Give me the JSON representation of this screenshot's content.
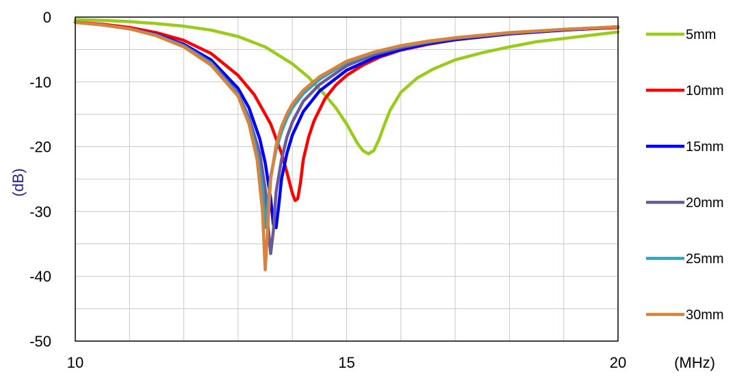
{
  "chart_data": {
    "type": "line",
    "title": "",
    "xlabel": "(MHz)",
    "ylabel": "(dB)",
    "xlim": [
      10,
      20
    ],
    "ylim": [
      -50,
      0
    ],
    "x_ticks": [
      10,
      15,
      20
    ],
    "y_ticks": [
      0,
      -10,
      -20,
      -30,
      -40,
      -50
    ],
    "x_tick_labels": [
      "10",
      "15",
      "20"
    ],
    "y_tick_labels": [
      "0",
      "-10",
      "-20",
      "-30",
      "-40",
      "-50"
    ],
    "grid": true,
    "legend_position": "right",
    "colors": {
      "ylabel": "#1f1f8f",
      "grid": "#c8c8c8",
      "axis": "#000000"
    },
    "series": [
      {
        "name": "5mm",
        "color": "#99cc1a",
        "x": [
          10,
          10.5,
          11,
          11.5,
          12,
          12.5,
          13,
          13.5,
          14,
          14.3,
          14.6,
          14.8,
          15,
          15.1,
          15.2,
          15.3,
          15.4,
          15.5,
          15.6,
          15.7,
          15.8,
          16,
          16.3,
          16.6,
          17,
          17.5,
          18,
          18.5,
          19,
          19.5,
          20
        ],
        "y": [
          -0.4,
          -0.5,
          -0.7,
          -1.0,
          -1.4,
          -2.0,
          -3.0,
          -4.6,
          -7.2,
          -9.3,
          -12.0,
          -14.0,
          -16.5,
          -18.0,
          -19.5,
          -20.6,
          -21.1,
          -20.6,
          -18.8,
          -16.5,
          -14.4,
          -11.6,
          -9.4,
          -8.0,
          -6.6,
          -5.5,
          -4.6,
          -3.8,
          -3.3,
          -2.8,
          -2.3
        ]
      },
      {
        "name": "10mm",
        "color": "#ff0000",
        "x": [
          10,
          10.5,
          11,
          11.5,
          12,
          12.5,
          13,
          13.3,
          13.6,
          13.8,
          13.9,
          14.0,
          14.05,
          14.1,
          14.15,
          14.2,
          14.3,
          14.4,
          14.6,
          14.8,
          15,
          15.3,
          15.6,
          16,
          16.5,
          17,
          17.5,
          18,
          18.5,
          19,
          19.5,
          20
        ],
        "y": [
          -0.8,
          -1.1,
          -1.6,
          -2.4,
          -3.6,
          -5.6,
          -9.0,
          -12.0,
          -16.5,
          -21.0,
          -24.0,
          -27.2,
          -28.3,
          -28.0,
          -25.5,
          -22.0,
          -18.5,
          -16.0,
          -12.6,
          -10.5,
          -9.0,
          -7.4,
          -6.2,
          -5.1,
          -4.2,
          -3.5,
          -3.0,
          -2.6,
          -2.3,
          -2.0,
          -1.8,
          -1.6
        ]
      },
      {
        "name": "15mm",
        "color": "#0000ff",
        "x": [
          10,
          10.5,
          11,
          11.5,
          12,
          12.5,
          13,
          13.2,
          13.4,
          13.5,
          13.6,
          13.65,
          13.7,
          13.75,
          13.8,
          13.9,
          14.0,
          14.2,
          14.5,
          15,
          15.5,
          16,
          16.5,
          17,
          18,
          19,
          20
        ],
        "y": [
          -0.8,
          -1.2,
          -1.8,
          -2.7,
          -4.2,
          -6.6,
          -11.0,
          -14.0,
          -18.8,
          -22.5,
          -28.0,
          -32.0,
          -32.5,
          -29.0,
          -25.0,
          -21.0,
          -18.2,
          -14.6,
          -11.4,
          -8.2,
          -6.3,
          -5.0,
          -4.1,
          -3.5,
          -2.6,
          -2.0,
          -1.5
        ]
      },
      {
        "name": "20mm",
        "color": "#6b5b95",
        "x": [
          10,
          10.5,
          11,
          11.5,
          12,
          12.5,
          13,
          13.2,
          13.4,
          13.5,
          13.55,
          13.6,
          13.65,
          13.7,
          13.8,
          13.9,
          14.0,
          14.2,
          14.5,
          15,
          15.5,
          16,
          16.5,
          17,
          18,
          19,
          20
        ],
        "y": [
          -0.8,
          -1.2,
          -1.8,
          -2.8,
          -4.4,
          -7.0,
          -11.8,
          -15.5,
          -21.0,
          -26.5,
          -32.0,
          -36.5,
          -33.0,
          -27.0,
          -22.0,
          -18.5,
          -16.2,
          -13.0,
          -10.4,
          -7.5,
          -5.8,
          -4.7,
          -3.9,
          -3.3,
          -2.5,
          -1.9,
          -1.5
        ]
      },
      {
        "name": "25mm",
        "color": "#3aa0b8",
        "x": [
          10,
          10.5,
          11,
          11.5,
          12,
          12.5,
          13,
          13.2,
          13.35,
          13.45,
          13.5,
          13.55,
          13.6,
          13.7,
          13.8,
          13.9,
          14.0,
          14.2,
          14.5,
          15,
          15.5,
          16,
          16.5,
          17,
          18,
          19,
          20
        ],
        "y": [
          -0.8,
          -1.2,
          -1.8,
          -2.8,
          -4.5,
          -7.2,
          -12.0,
          -16.0,
          -21.0,
          -26.5,
          -32.5,
          -29.0,
          -24.5,
          -20.5,
          -17.7,
          -15.6,
          -14.0,
          -11.8,
          -9.6,
          -7.0,
          -5.5,
          -4.5,
          -3.8,
          -3.2,
          -2.4,
          -1.9,
          -1.5
        ]
      },
      {
        "name": "30mm",
        "color": "#d9823b",
        "x": [
          10,
          10.5,
          11,
          11.5,
          12,
          12.5,
          13,
          13.2,
          13.35,
          13.45,
          13.5,
          13.55,
          13.6,
          13.7,
          13.8,
          13.9,
          14.0,
          14.2,
          14.5,
          15,
          15.5,
          16,
          16.5,
          17,
          18,
          19,
          20
        ],
        "y": [
          -0.8,
          -1.2,
          -1.8,
          -2.9,
          -4.6,
          -7.4,
          -12.2,
          -16.5,
          -22.0,
          -30.0,
          -39.0,
          -32.0,
          -25.0,
          -19.8,
          -16.9,
          -14.9,
          -13.4,
          -11.3,
          -9.2,
          -6.8,
          -5.4,
          -4.4,
          -3.7,
          -3.2,
          -2.4,
          -1.9,
          -1.5
        ]
      }
    ]
  }
}
